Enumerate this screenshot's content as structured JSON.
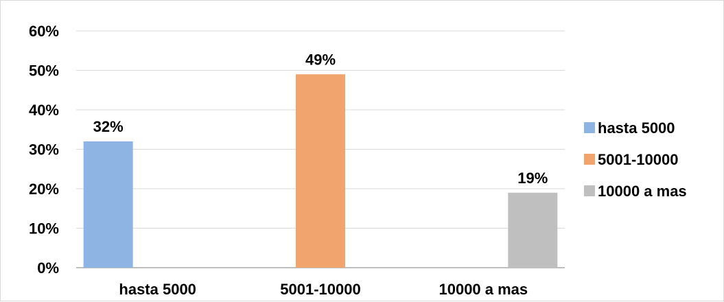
{
  "chart_data": {
    "type": "bar",
    "categories": [
      "hasta 5000",
      "5001-10000",
      "10000 a mas"
    ],
    "series": [
      {
        "name": "hasta 5000",
        "color": "#8db4e2",
        "values": [
          32,
          null,
          null
        ]
      },
      {
        "name": "5001-10000",
        "color": "#f2a46f",
        "values": [
          null,
          49,
          null
        ]
      },
      {
        "name": "10000 a mas",
        "color": "#bfbfbf",
        "values": [
          null,
          null,
          19
        ]
      }
    ],
    "data_labels": [
      "32%",
      "49%",
      "19%"
    ],
    "y_ticks": [
      "0%",
      "10%",
      "20%",
      "30%",
      "40%",
      "50%",
      "60%"
    ],
    "ylim": [
      0,
      60
    ],
    "y_unit": "%",
    "grid": true,
    "legend_position": "right",
    "title": "",
    "xlabel": "",
    "ylabel": ""
  }
}
